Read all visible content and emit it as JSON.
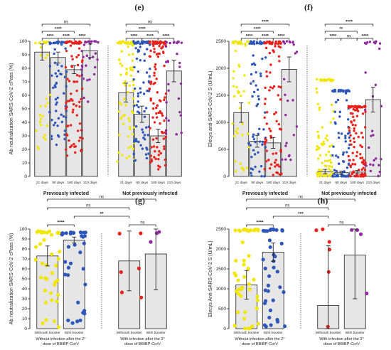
{
  "chart_data": [
    {
      "type": "bar",
      "panel": "(e)",
      "ylabel": "Ab neutralization SARS-CoV-2 cPass (%)",
      "ylim": [
        0,
        100
      ],
      "yticks": [
        "0",
        "10",
        "20",
        "30",
        "40",
        "50",
        "60",
        "70",
        "80",
        "90",
        "100"
      ],
      "categories": [
        "21 days",
        "90 days",
        "180 days",
        "210 days",
        "21 days",
        "90 days",
        "180 days",
        "210 days"
      ],
      "groups": [
        "Previously infected",
        "Not previously infected"
      ],
      "colors": [
        "#f2e600",
        "#2e56b8",
        "#e8221c",
        "#8e2a9e",
        "#f2e600",
        "#2e56b8",
        "#e8221c",
        "#8e2a9e"
      ],
      "values": [
        92,
        88,
        79,
        93,
        62,
        46,
        30,
        78
      ],
      "errors": [
        6,
        4,
        3,
        5,
        7,
        6,
        5,
        8
      ],
      "points_per_bar": [
        30,
        70,
        90,
        30,
        90,
        90,
        120,
        30
      ],
      "spread": [
        [
          20,
          100
        ],
        [
          20,
          100
        ],
        [
          15,
          100
        ],
        [
          55,
          100
        ],
        [
          10,
          100
        ],
        [
          10,
          100
        ],
        [
          5,
          100
        ],
        [
          30,
          100
        ]
      ],
      "brackets": [
        {
          "from": 0,
          "to": 1,
          "label": "****",
          "level": 0
        },
        {
          "from": 1,
          "to": 2,
          "label": "****",
          "level": 0
        },
        {
          "from": 2,
          "to": 3,
          "label": "****",
          "level": 0
        },
        {
          "from": 0,
          "to": 2,
          "label": "****",
          "level": 1
        },
        {
          "from": 0,
          "to": 3,
          "label": "ns",
          "level": 2
        },
        {
          "from": 4,
          "to": 5,
          "label": "****",
          "level": 0
        },
        {
          "from": 5,
          "to": 6,
          "label": "****",
          "level": 0
        },
        {
          "from": 6,
          "to": 7,
          "label": "****",
          "level": 0
        },
        {
          "from": 4,
          "to": 6,
          "label": "****",
          "level": 1
        },
        {
          "from": 4,
          "to": 7,
          "label": "ns",
          "level": 2
        }
      ]
    },
    {
      "type": "bar",
      "panel": "(f)",
      "ylabel": "Elecys anti-SARS-CoV-2 S (U/mL)",
      "ylim": [
        0,
        2500
      ],
      "yticks": [
        "0",
        "500",
        "1000",
        "1500",
        "2000",
        "2500"
      ],
      "categories": [
        "21 days",
        "90 days",
        "180 days",
        "210 days",
        "21 days",
        "90 days",
        "180 days",
        "210 days"
      ],
      "groups": [
        "Previously infected",
        "Not previously infected"
      ],
      "colors": [
        "#f2e600",
        "#2e56b8",
        "#e8221c",
        "#8e2a9e",
        "#f2e600",
        "#2e56b8",
        "#e8221c",
        "#8e2a9e"
      ],
      "values": [
        1180,
        650,
        620,
        1980,
        90,
        70,
        80,
        1420
      ],
      "errors": [
        180,
        110,
        100,
        230,
        40,
        30,
        30,
        230
      ],
      "points_per_bar": [
        50,
        70,
        90,
        25,
        90,
        90,
        120,
        30
      ],
      "spread": [
        [
          0,
          2500
        ],
        [
          0,
          2500
        ],
        [
          0,
          2500
        ],
        [
          300,
          2500
        ],
        [
          0,
          1800
        ],
        [
          0,
          1600
        ],
        [
          0,
          1300
        ],
        [
          0,
          2500
        ]
      ],
      "brackets": [
        {
          "from": 0,
          "to": 1,
          "label": "****",
          "level": 0
        },
        {
          "from": 1,
          "to": 2,
          "label": "****",
          "level": 0
        },
        {
          "from": 2,
          "to": 3,
          "label": "****",
          "level": 0
        },
        {
          "from": 0,
          "to": 2,
          "label": "****",
          "level": 1
        },
        {
          "from": 0,
          "to": 3,
          "label": "****",
          "level": 2
        },
        {
          "from": 4,
          "to": 5,
          "label": "****",
          "level": 0
        },
        {
          "from": 5,
          "to": 6,
          "label": "ns",
          "level": 0
        },
        {
          "from": 6,
          "to": 7,
          "label": "****",
          "level": 0
        },
        {
          "from": 4,
          "to": 6,
          "label": "**",
          "level": 1
        },
        {
          "from": 4,
          "to": 7,
          "label": "****",
          "level": 2
        }
      ]
    },
    {
      "type": "bar",
      "panel": "(g)",
      "ylabel": "Ab neutralization SARS-CoV-2 cPass (%)",
      "ylim": [
        0,
        100
      ],
      "yticks": [
        "0",
        "10",
        "20",
        "30",
        "40",
        "50",
        "60",
        "70",
        "80",
        "90",
        "100"
      ],
      "categories": [
        "Withouth booster",
        "With booster",
        "Withouth booster",
        "With booster"
      ],
      "groups": [
        "Without infection after the 2° dose of BBIBP-CorV",
        "With infection after the 2° dose of BBIBP-CorV"
      ],
      "colors": [
        "#f2e600",
        "#2e56b8",
        "#e8221c",
        "#8e2a9e"
      ],
      "values": [
        73,
        89,
        68,
        75
      ],
      "errors": [
        10,
        3,
        30,
        36
      ],
      "points_per_bar": [
        40,
        35,
        6,
        3
      ],
      "spread": [
        [
          0,
          98
        ],
        [
          5,
          97
        ],
        [
          15,
          97
        ],
        [
          40,
          98
        ]
      ],
      "brackets": [
        {
          "from": 0,
          "to": 1,
          "label": "****",
          "level": 0
        },
        {
          "from": 2,
          "to": 3,
          "label": "ns",
          "level": 0
        },
        {
          "from": 1,
          "to": 2,
          "label": "**",
          "level": 1
        },
        {
          "from": 0,
          "to": 2,
          "label": "ns",
          "level": 2
        },
        {
          "from": 0,
          "to": 3,
          "label": "ns",
          "level": 3
        }
      ]
    },
    {
      "type": "bar",
      "panel": "(h)",
      "ylabel": "Elecys Anti-SARS-CoV-2 S (U/mL)",
      "ylim": [
        0,
        2500
      ],
      "yticks": [
        "0",
        "500",
        "1000",
        "1500",
        "2000",
        "2500"
      ],
      "categories": [
        "Withouth booster",
        "With booster",
        "Withouth booster",
        "With booster"
      ],
      "groups": [
        "Without infection after the 2° dose of BBIBP-CorV",
        "With infection after the 2° dose of BBIBP-CorV"
      ],
      "colors": [
        "#f2e600",
        "#2e56b8",
        "#e8221c",
        "#8e2a9e"
      ],
      "values": [
        1100,
        1920,
        580,
        1850
      ],
      "errors": [
        360,
        230,
        1500,
        1100
      ],
      "points_per_bar": [
        45,
        40,
        6,
        4
      ],
      "spread": [
        [
          0,
          2500
        ],
        [
          0,
          2500
        ],
        [
          50,
          2500
        ],
        [
          700,
          2500
        ]
      ],
      "brackets": [
        {
          "from": 0,
          "to": 1,
          "label": "****",
          "level": 0
        },
        {
          "from": 2,
          "to": 3,
          "label": "ns",
          "level": 0
        },
        {
          "from": 1,
          "to": 2,
          "label": "***",
          "level": 1
        },
        {
          "from": 0,
          "to": 2,
          "label": "ns",
          "level": 2
        },
        {
          "from": 0,
          "to": 3,
          "label": "ns",
          "level": 3
        }
      ]
    }
  ]
}
